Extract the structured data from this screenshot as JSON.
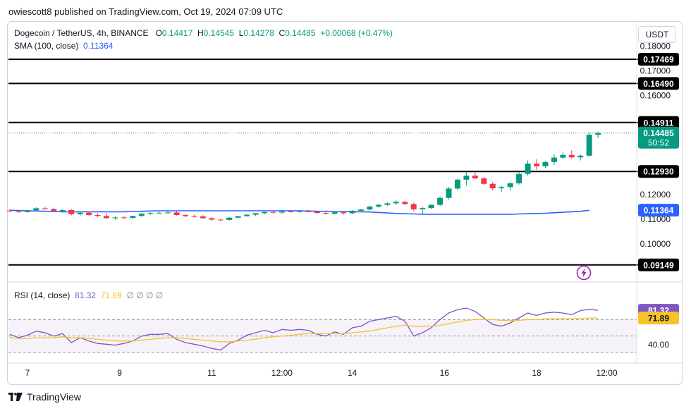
{
  "publisher_line": "owiescott8 published on TradingView.com, Oct 19, 2024 07:09 UTC",
  "legend": {
    "symbol": "Dogecoin / TetherUS, 4h, BINANCE",
    "o_label": "O",
    "o": "0.14417",
    "h_label": "H",
    "h": "0.14545",
    "l_label": "L",
    "l": "0.14278",
    "c_label": "C",
    "c": "0.14485",
    "change": "+0.00068 (+0.47%)",
    "sma_label": "SMA (100, close)",
    "sma_value": "0.11364",
    "rsi_label": "RSI (14, close)",
    "rsi_value": "81.32",
    "rsi_ma_value": "71.89",
    "rsi_extra": "∅ ∅ ∅ ∅"
  },
  "currency_button": "USDT",
  "brand": "TradingView",
  "chart_data": {
    "type": "candlestick",
    "title": "Dogecoin / TetherUS, 4h, BINANCE",
    "price_axis": {
      "ylim": [
        0.088,
        0.181
      ],
      "ticks": [
        0.18,
        0.17,
        0.16,
        0.12,
        0.11,
        0.1
      ],
      "tick_labels": [
        "0.18000",
        "0.17000",
        "0.16000",
        "0.12000",
        "0.11000",
        "0.10000"
      ]
    },
    "x_axis": {
      "tick_labels": [
        "7",
        "9",
        "11",
        "12:00",
        "14",
        "16",
        "18",
        "12:00"
      ],
      "tick_index": [
        2,
        12.5,
        23,
        31,
        39,
        49.5,
        60,
        68
      ]
    },
    "horizontal_levels": [
      {
        "value": 0.17469,
        "label": "0.17469"
      },
      {
        "value": 0.1649,
        "label": "0.16490"
      },
      {
        "value": 0.14911,
        "label": "0.14911"
      },
      {
        "value": 0.1293,
        "label": "0.12930"
      },
      {
        "value": 0.09149,
        "label": "0.09149"
      }
    ],
    "last_price": {
      "value": 0.14485,
      "label": "0.14485",
      "countdown": "50:52",
      "color": "#089981"
    },
    "sma": {
      "name": "SMA (100, close)",
      "last": 0.11364,
      "label": "0.11364",
      "color": "#2962ff",
      "values": [
        0.1136,
        0.1135,
        0.1134,
        0.1133,
        0.1132,
        0.1131,
        0.113,
        0.113,
        0.113,
        0.113,
        0.113,
        0.113,
        0.113,
        0.113,
        0.1131,
        0.1132,
        0.1133,
        0.1134,
        0.1134,
        0.1134,
        0.1134,
        0.1134,
        0.1134,
        0.1134,
        0.1134,
        0.1134,
        0.1134,
        0.1134,
        0.1134,
        0.1134,
        0.1134,
        0.1134,
        0.1134,
        0.1134,
        0.1133,
        0.1132,
        0.1132,
        0.1131,
        0.1131,
        0.113,
        0.113,
        0.1129,
        0.1127,
        0.1125,
        0.1123,
        0.1122,
        0.1121,
        0.112,
        0.112,
        0.112,
        0.112,
        0.112,
        0.112,
        0.112,
        0.112,
        0.112,
        0.112,
        0.112,
        0.1121,
        0.1122,
        0.1123,
        0.1124,
        0.1126,
        0.1128,
        0.113,
        0.1132,
        0.1136
      ]
    },
    "candles": [
      [
        0.1135,
        0.114,
        0.1128,
        0.1132
      ],
      [
        0.1132,
        0.1136,
        0.1125,
        0.1129
      ],
      [
        0.1129,
        0.1138,
        0.1126,
        0.1136
      ],
      [
        0.1136,
        0.1148,
        0.1133,
        0.1144
      ],
      [
        0.1144,
        0.115,
        0.1138,
        0.1141
      ],
      [
        0.1141,
        0.1147,
        0.1129,
        0.1133
      ],
      [
        0.1133,
        0.114,
        0.1127,
        0.1137
      ],
      [
        0.1137,
        0.1141,
        0.1115,
        0.112
      ],
      [
        0.112,
        0.1129,
        0.1113,
        0.1126
      ],
      [
        0.1126,
        0.1131,
        0.1113,
        0.1117
      ],
      [
        0.1117,
        0.1124,
        0.1109,
        0.1113
      ],
      [
        0.1113,
        0.1124,
        0.1101,
        0.1104
      ],
      [
        0.1104,
        0.1111,
        0.1097,
        0.1107
      ],
      [
        0.1107,
        0.1112,
        0.11,
        0.1105
      ],
      [
        0.1105,
        0.1114,
        0.11,
        0.1113
      ],
      [
        0.1113,
        0.1124,
        0.111,
        0.1122
      ],
      [
        0.1122,
        0.1128,
        0.1117,
        0.1125
      ],
      [
        0.1125,
        0.1132,
        0.1121,
        0.1126
      ],
      [
        0.1126,
        0.1137,
        0.1123,
        0.1127
      ],
      [
        0.1127,
        0.1133,
        0.1115,
        0.1117
      ],
      [
        0.1117,
        0.112,
        0.1108,
        0.1112
      ],
      [
        0.1112,
        0.1118,
        0.1106,
        0.1111
      ],
      [
        0.1111,
        0.1116,
        0.1101,
        0.1104
      ],
      [
        0.1104,
        0.1108,
        0.1094,
        0.1098
      ],
      [
        0.1098,
        0.1103,
        0.1093,
        0.1097
      ],
      [
        0.1097,
        0.1108,
        0.1095,
        0.1106
      ],
      [
        0.1106,
        0.1113,
        0.1104,
        0.1112
      ],
      [
        0.1112,
        0.112,
        0.111,
        0.1118
      ],
      [
        0.1118,
        0.1125,
        0.1113,
        0.1124
      ],
      [
        0.1124,
        0.1131,
        0.1119,
        0.1129
      ],
      [
        0.1129,
        0.1134,
        0.1124,
        0.1127
      ],
      [
        0.1127,
        0.1132,
        0.1122,
        0.1131
      ],
      [
        0.1131,
        0.1136,
        0.1126,
        0.113
      ],
      [
        0.113,
        0.1136,
        0.1126,
        0.1132
      ],
      [
        0.1132,
        0.1137,
        0.1127,
        0.113
      ],
      [
        0.113,
        0.1134,
        0.112,
        0.1125
      ],
      [
        0.1125,
        0.1131,
        0.1118,
        0.1122
      ],
      [
        0.1122,
        0.113,
        0.1119,
        0.1128
      ],
      [
        0.1128,
        0.1132,
        0.1118,
        0.1124
      ],
      [
        0.1124,
        0.1137,
        0.112,
        0.1134
      ],
      [
        0.1134,
        0.1142,
        0.1129,
        0.1139
      ],
      [
        0.1139,
        0.1154,
        0.1136,
        0.1151
      ],
      [
        0.1151,
        0.1162,
        0.1146,
        0.1158
      ],
      [
        0.1158,
        0.1168,
        0.1153,
        0.1164
      ],
      [
        0.1164,
        0.1176,
        0.1158,
        0.117
      ],
      [
        0.117,
        0.1175,
        0.1157,
        0.1161
      ],
      [
        0.1161,
        0.1166,
        0.1133,
        0.114
      ],
      [
        0.114,
        0.115,
        0.112,
        0.1145
      ],
      [
        0.1145,
        0.116,
        0.114,
        0.1158
      ],
      [
        0.1158,
        0.1192,
        0.1153,
        0.1186
      ],
      [
        0.1186,
        0.123,
        0.118,
        0.1224
      ],
      [
        0.1224,
        0.1265,
        0.1218,
        0.126
      ],
      [
        0.126,
        0.129,
        0.1236,
        0.1276
      ],
      [
        0.1276,
        0.1292,
        0.1262,
        0.1265
      ],
      [
        0.1265,
        0.127,
        0.1238,
        0.1243
      ],
      [
        0.1243,
        0.1251,
        0.1216,
        0.1225
      ],
      [
        0.1225,
        0.1235,
        0.121,
        0.123
      ],
      [
        0.123,
        0.125,
        0.1215,
        0.1245
      ],
      [
        0.1245,
        0.129,
        0.124,
        0.1283
      ],
      [
        0.1283,
        0.1338,
        0.1276,
        0.1325
      ],
      [
        0.1325,
        0.1343,
        0.13,
        0.1314
      ],
      [
        0.1314,
        0.1335,
        0.1308,
        0.1331
      ],
      [
        0.1331,
        0.1362,
        0.132,
        0.1349
      ],
      [
        0.1349,
        0.137,
        0.1343,
        0.136
      ],
      [
        0.136,
        0.1379,
        0.1345,
        0.135
      ],
      [
        0.135,
        0.1361,
        0.1338,
        0.1357
      ],
      [
        0.1357,
        0.1451,
        0.1351,
        0.1442
      ],
      [
        0.14417,
        0.14545,
        0.14278,
        0.14485
      ]
    ],
    "candle_fields": [
      "open",
      "high",
      "low",
      "close"
    ],
    "up_color": "#089981",
    "down_color": "#f23645",
    "rsi": {
      "label": "RSI (14, close)",
      "ylim": [
        30,
        90
      ],
      "band": [
        30,
        70
      ],
      "tick_labels": [
        "81.32",
        "71.89",
        "40.00"
      ],
      "tick_values": [
        81.32,
        71.89,
        40
      ],
      "values": [
        52,
        48,
        51,
        56,
        54,
        50,
        53,
        42,
        48,
        44,
        41,
        40,
        39,
        41,
        44,
        50,
        52,
        52,
        53,
        46,
        42,
        40,
        38,
        35,
        33,
        41,
        45,
        51,
        54,
        57,
        54,
        58,
        57,
        58,
        57,
        52,
        50,
        55,
        52,
        60,
        62,
        68,
        70,
        72,
        74,
        68,
        50,
        54,
        60,
        70,
        78,
        82,
        84,
        80,
        72,
        64,
        62,
        66,
        72,
        78,
        75,
        78,
        79,
        78,
        76,
        81,
        82.5,
        81.32
      ],
      "ma_values": [
        48,
        47,
        47,
        48,
        48,
        48,
        49,
        48,
        48,
        47,
        46,
        45,
        44,
        44,
        44,
        45,
        46,
        47,
        48,
        48,
        47,
        46,
        45,
        44,
        43,
        43,
        44,
        45,
        46,
        48,
        49,
        50,
        51,
        52,
        53,
        53,
        53,
        53,
        53,
        54,
        55,
        56,
        58,
        60,
        62,
        63,
        62,
        62,
        62,
        63,
        65,
        67,
        69,
        70,
        70,
        70,
        69,
        69,
        69,
        70,
        70,
        71,
        71,
        71,
        71,
        71.5,
        71.8,
        71.89
      ],
      "rsi_color": "#7e57c2",
      "ma_color": "#f7c32a"
    }
  }
}
